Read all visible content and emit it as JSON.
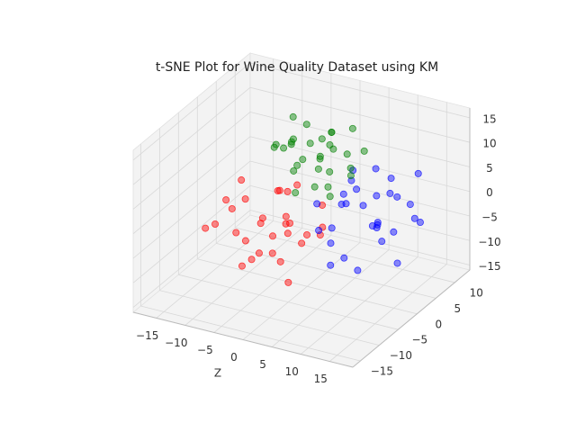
{
  "chart_data": {
    "type": "scatter3d",
    "title": "t-SNE Plot for Wine Quality Dataset using KM",
    "xlabel": "Z",
    "xlim": [
      -19,
      19
    ],
    "ylim": [
      -17,
      14
    ],
    "zlim": [
      -16,
      17
    ],
    "xticks": [
      {
        "value": -15,
        "label": "−15"
      },
      {
        "value": -10,
        "label": "−10"
      },
      {
        "value": -5,
        "label": "−5"
      },
      0,
      5,
      10,
      15
    ],
    "yticks": [
      {
        "value": -15,
        "label": "−15"
      },
      {
        "value": -10,
        "label": "−10"
      },
      {
        "value": -5,
        "label": "−5"
      },
      0,
      5,
      10
    ],
    "zticks": [
      {
        "value": -15,
        "label": "−15"
      },
      {
        "value": -10,
        "label": "−10"
      },
      {
        "value": -5,
        "label": "−5"
      },
      0,
      5,
      10,
      15
    ],
    "grid": true,
    "series": [
      {
        "color": "#ff0000",
        "x": [
          -15,
          -12,
          -10,
          -8,
          -6,
          -4,
          -2,
          0,
          2,
          -14,
          -11,
          -9,
          -7,
          -5,
          -3,
          -1,
          1,
          -13,
          -10,
          -8,
          -6,
          -4,
          -12,
          -9,
          -7,
          -5,
          -3,
          -16,
          -2,
          0
        ],
        "y": [
          -4,
          2,
          -1,
          5,
          0,
          -3,
          3,
          -5,
          1,
          4,
          -2,
          6,
          -4,
          2,
          -1,
          5,
          -3,
          0,
          3,
          -5,
          4,
          1,
          -6,
          2,
          -2,
          5,
          0,
          3,
          -4,
          4
        ],
        "z": [
          -6,
          -3,
          -9,
          -2,
          -11,
          -5,
          -8,
          -12,
          -4,
          -1,
          -7,
          -3,
          -10,
          -6,
          -2,
          -9,
          -5,
          -4,
          -8,
          -11,
          -1,
          -7,
          -3,
          -6,
          -10,
          0,
          -4,
          -5,
          -9,
          -2
        ]
      },
      {
        "color": "#0000ff",
        "x": [
          2,
          4,
          6,
          8,
          10,
          12,
          14,
          16,
          3,
          5,
          7,
          9,
          11,
          13,
          15,
          1,
          6,
          8,
          10,
          12,
          4,
          9,
          14,
          7,
          11,
          2,
          13,
          5,
          10,
          15
        ],
        "y": [
          0,
          6,
          -3,
          10,
          2,
          -5,
          8,
          4,
          -2,
          11,
          1,
          -4,
          7,
          3,
          -1,
          5,
          9,
          -6,
          12,
          0,
          3,
          6,
          -3,
          8,
          -2,
          10,
          4,
          2,
          -5,
          7
        ],
        "z": [
          -4,
          5,
          -8,
          2,
          -2,
          -6,
          6,
          0,
          3,
          -9,
          7,
          -5,
          1,
          -3,
          8,
          -7,
          4,
          -1,
          -4,
          6,
          0,
          -8,
          2,
          -6,
          5,
          -2,
          -10,
          3,
          7,
          -3
        ]
      },
      {
        "color": "#008000",
        "x": [
          -8,
          -6,
          -4,
          -2,
          0,
          2,
          4,
          -7,
          -5,
          -3,
          -1,
          1,
          3,
          -6,
          -4,
          -2,
          0,
          2,
          -8,
          -5,
          -3,
          -1,
          1,
          -7,
          -4,
          -2,
          0,
          3,
          -6,
          -1
        ],
        "y": [
          4,
          8,
          2,
          10,
          6,
          3,
          9,
          7,
          5,
          1,
          8,
          4,
          6,
          10,
          3,
          7,
          2,
          9,
          6,
          4,
          8,
          5,
          10,
          2,
          6,
          9,
          3,
          7,
          5,
          8
        ],
        "z": [
          8,
          3,
          11,
          5,
          9,
          1,
          7,
          12,
          4,
          6,
          10,
          2,
          8,
          5,
          0,
          9,
          3,
          11,
          6,
          10,
          4,
          7,
          2,
          9,
          12,
          1,
          6,
          3,
          8,
          10
        ]
      }
    ]
  }
}
